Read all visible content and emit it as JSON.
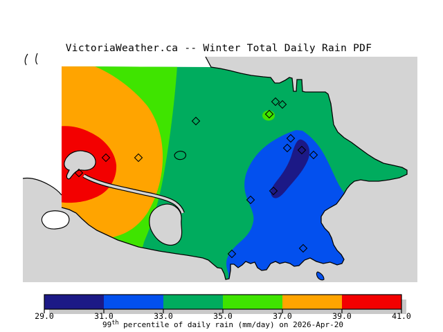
{
  "title": "VictoriaWeather.ca -- Winter Total Daily Rain PDF",
  "map": {
    "ocean_color": "#D4D4D4",
    "land_base_color": "#00AC5E",
    "band_colors": {
      "29-31": "#1C1986",
      "31-33": "#0350EE",
      "33-35": "#00AC5E",
      "35-37": "#3FE400",
      "37-39": "#FFA400",
      "39-41": "#F30000"
    },
    "levels_mm_per_day": [
      29,
      31,
      33,
      35,
      37,
      39,
      41
    ],
    "stations": [
      [
        153,
        228
      ],
      [
        200,
        228
      ],
      [
        114,
        250
      ],
      [
        283,
        175
      ],
      [
        398,
        147
      ],
      [
        408,
        151
      ],
      [
        389,
        165
      ],
      [
        420,
        200
      ],
      [
        415,
        214
      ],
      [
        436,
        217
      ],
      [
        453,
        224
      ],
      [
        395,
        276
      ],
      [
        362,
        289
      ],
      [
        335,
        367
      ],
      [
        438,
        359
      ]
    ],
    "highlighted_station": [
      389,
      165
    ]
  },
  "colorbar": {
    "labels": [
      "29.0",
      "31.0",
      "33.0",
      "35.0",
      "37.0",
      "39.0",
      "41.0"
    ],
    "segment_colors": [
      "#1C1986",
      "#0350EE",
      "#00AC5E",
      "#3FE400",
      "#FFA400",
      "#F30000"
    ],
    "caption": {
      "base": "99",
      "sup": "th",
      "rest": " percentile of daily rain (mm/day) on 2026-Apr-20"
    }
  },
  "chart_data": {
    "type": "heatmap",
    "title": "VictoriaWeather.ca -- Winter Total Daily Rain PDF",
    "legend_label": "99th percentile of daily rain (mm/day) on 2026-Apr-20",
    "unit": "mm/day",
    "levels": [
      29,
      31,
      33,
      35,
      37,
      39,
      41
    ],
    "level_colors": [
      "#1C1986",
      "#0350EE",
      "#00AC5E",
      "#3FE400",
      "#FFA400",
      "#F30000"
    ],
    "legend_position": "bottom"
  }
}
